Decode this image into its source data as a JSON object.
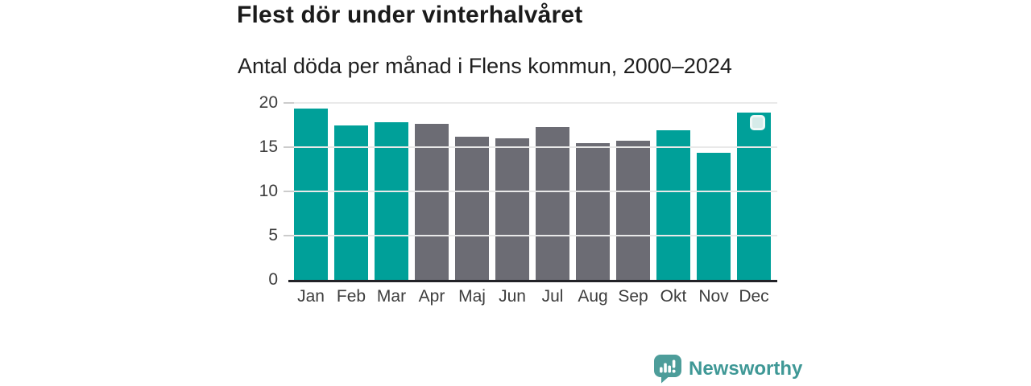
{
  "header": {
    "title": "Flest dör under vinterhalvåret",
    "subtitle": "Antal döda per månad i Flens kommun, 2000–2024"
  },
  "chart_data": {
    "type": "bar",
    "title": "Flest dör under vinterhalvåret",
    "subtitle": "Antal döda per månad i Flens kommun, 2000–2024",
    "categories": [
      "Jan",
      "Feb",
      "Mar",
      "Apr",
      "Maj",
      "Jun",
      "Jul",
      "Aug",
      "Sep",
      "Okt",
      "Nov",
      "Dec"
    ],
    "values": [
      19.4,
      17.5,
      17.8,
      17.6,
      16.2,
      16.0,
      17.3,
      15.5,
      15.7,
      16.9,
      14.4,
      18.9
    ],
    "bar_groups": [
      "winter",
      "winter",
      "winter",
      "summer",
      "summer",
      "summer",
      "summer",
      "summer",
      "summer",
      "winter",
      "winter",
      "winter"
    ],
    "group_colors": {
      "winter": "#00a099",
      "summer": "#6c6c74"
    },
    "xlabel": "",
    "ylabel": "",
    "ylim": [
      0,
      20
    ],
    "yticks": [
      0,
      5,
      10,
      15,
      20
    ],
    "grid": true,
    "legend": false,
    "highlight_marker_month": "Dec"
  },
  "footer": {
    "brand": "Newsworthy",
    "logo_icon": "newsworthy-speech-bubble-chart-icon",
    "brand_color": "#3f9896",
    "logo_bubble_color": "#4d9d9a"
  }
}
